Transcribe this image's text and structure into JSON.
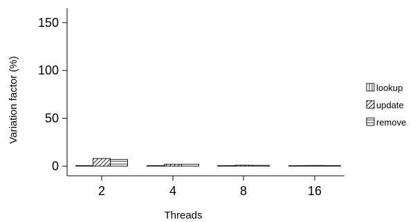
{
  "chart_data": {
    "type": "bar",
    "xlabel": "Threads",
    "ylabel": "Variation factor (%)",
    "categories": [
      "2",
      "4",
      "8",
      "16"
    ],
    "ylim": [
      0,
      165
    ],
    "yticks": [
      "0",
      "50",
      "100",
      "150"
    ],
    "legend_position": "right",
    "series": [
      {
        "name": "lookup",
        "pattern": "vertical",
        "values": [
          0.3,
          0.3,
          0.2,
          0.2
        ]
      },
      {
        "name": "update",
        "pattern": "diagonal",
        "values": [
          8,
          2,
          1,
          0.7
        ]
      },
      {
        "name": "remove",
        "pattern": "horizontal",
        "values": [
          7,
          2,
          0.8,
          0.6
        ]
      }
    ]
  }
}
